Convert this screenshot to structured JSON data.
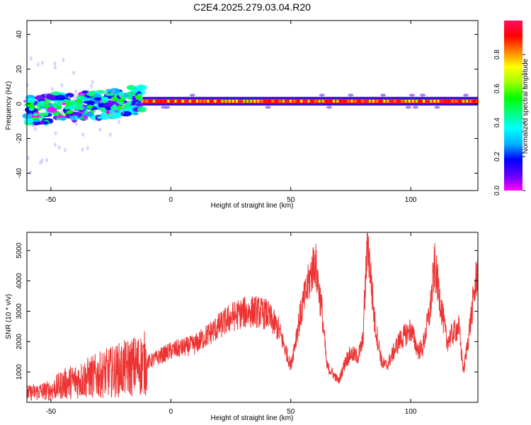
{
  "title": "C2E4.2025.279.03.04.R20",
  "chart_data": [
    {
      "type": "heatmap",
      "xlabel": "Height of straight line (km)",
      "ylabel": "Frequency (Hz)",
      "xlim": [
        -60,
        128
      ],
      "ylim": [
        -50,
        48
      ],
      "xticks": [
        -50,
        0,
        50,
        100
      ],
      "yticks": [
        -40,
        -20,
        0,
        20,
        40
      ],
      "colorbar": {
        "label": "Normalized spectral amplitude",
        "range": [
          0,
          1
        ],
        "ticks": [
          "0.0",
          "0.2",
          "0.4",
          "0.6",
          "0.8"
        ],
        "colormap": [
          "#ff00ff",
          "#6000ff",
          "#0000ff",
          "#00b0ff",
          "#00ffff",
          "#00ff80",
          "#00ff00",
          "#a0ff00",
          "#ffff00",
          "#ff8000",
          "#ff0000",
          "#ff1060"
        ]
      },
      "dominant_line": {
        "freq": 1.5,
        "from_height": -12,
        "to_height": 128,
        "amplitude": 0.9
      },
      "scatter_region": {
        "from_height": -60,
        "to_height": -12,
        "freq_min": -10,
        "freq_max": 6
      }
    },
    {
      "type": "line",
      "xlabel": "Height of straight line (km)",
      "ylabel": "SNR (10 * v/v)",
      "xlim": [
        -60,
        128
      ],
      "ylim": [
        0,
        5600
      ],
      "xticks": [
        -50,
        0,
        50,
        100
      ],
      "yticks": [
        1000,
        2000,
        3000,
        4000,
        5000
      ],
      "color": "#ee3333",
      "envelope": {
        "x": [
          -60,
          -55,
          -50,
          -45,
          -40,
          -35,
          -30,
          -25,
          -20,
          -15,
          -10,
          -5,
          0,
          5,
          10,
          15,
          20,
          25,
          30,
          35,
          40,
          45,
          50,
          53,
          55,
          60,
          63,
          65,
          70,
          73,
          75,
          78,
          80,
          82,
          85,
          88,
          90,
          95,
          100,
          103,
          105,
          108,
          110,
          115,
          120,
          122,
          125,
          128
        ],
        "y": [
          300,
          350,
          400,
          600,
          700,
          800,
          900,
          1000,
          1100,
          1200,
          1300,
          1500,
          1700,
          1800,
          1900,
          2200,
          2500,
          2800,
          2950,
          3000,
          2900,
          2400,
          1200,
          2500,
          3200,
          4700,
          3000,
          1200,
          700,
          1400,
          1600,
          1500,
          2000,
          5400,
          2600,
          1300,
          1200,
          2000,
          2400,
          1700,
          1800,
          3000,
          4500,
          2000,
          2500,
          1000,
          2700,
          4500
        ]
      }
    }
  ]
}
